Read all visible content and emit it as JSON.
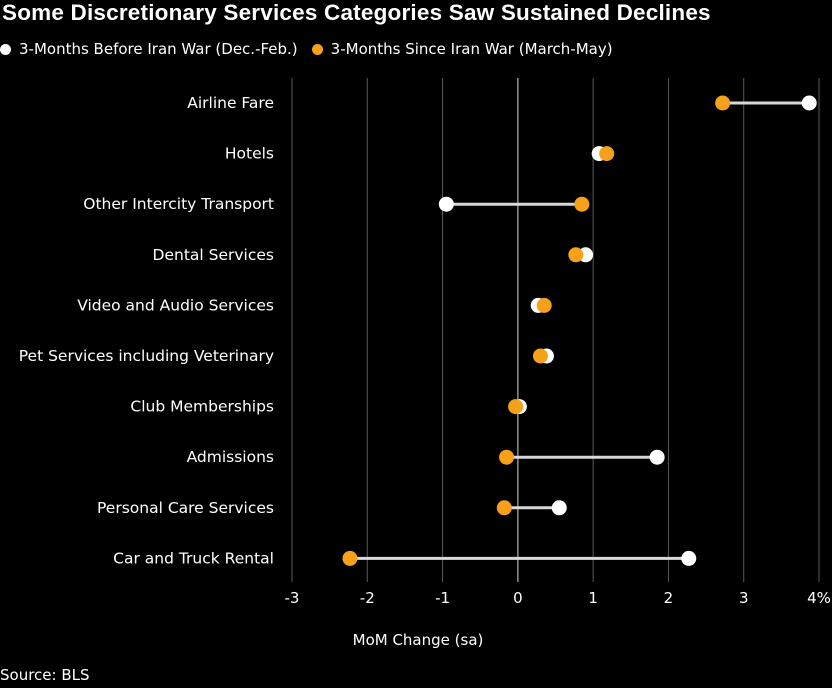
{
  "title": "Some Discretionary Services Categories Saw Sustained Declines",
  "legend": [
    {
      "label": "3-Months Before Iran War (Dec.-Feb.)",
      "color": "#ffffff"
    },
    {
      "label": "3-Months Since Iran War (March-May)",
      "color": "#f7a11a"
    }
  ],
  "source": "Source: BLS",
  "chart_data": {
    "type": "dot-plot",
    "xlabel": "MoM Change (sa)",
    "xlim": [
      -3,
      4
    ],
    "xticks": [
      -3,
      -2,
      -1,
      0,
      1,
      2,
      3,
      4
    ],
    "xtick_labels": [
      "-3",
      "-2",
      "-1",
      "0",
      "1",
      "2",
      "3",
      "4%"
    ],
    "grid": true,
    "categories": [
      "Airline Fare",
      "Hotels",
      "Other Intercity Transport",
      "Dental Services",
      "Video and Audio Services",
      "Pet Services including Veterinary",
      "Club Memberships",
      "Admissions",
      "Personal Care Services",
      "Car and Truck Rental"
    ],
    "series": [
      {
        "name": "3-Months Before Iran War (Dec.-Feb.)",
        "color": "#ffffff",
        "values": [
          3.87,
          1.08,
          -0.95,
          0.9,
          0.27,
          0.38,
          0.02,
          1.85,
          0.55,
          2.27
        ]
      },
      {
        "name": "3-Months Since Iran War (March-May)",
        "color": "#f7a11a",
        "values": [
          2.72,
          1.18,
          0.85,
          0.77,
          0.35,
          0.3,
          -0.03,
          -0.15,
          -0.18,
          -2.23
        ]
      }
    ]
  }
}
